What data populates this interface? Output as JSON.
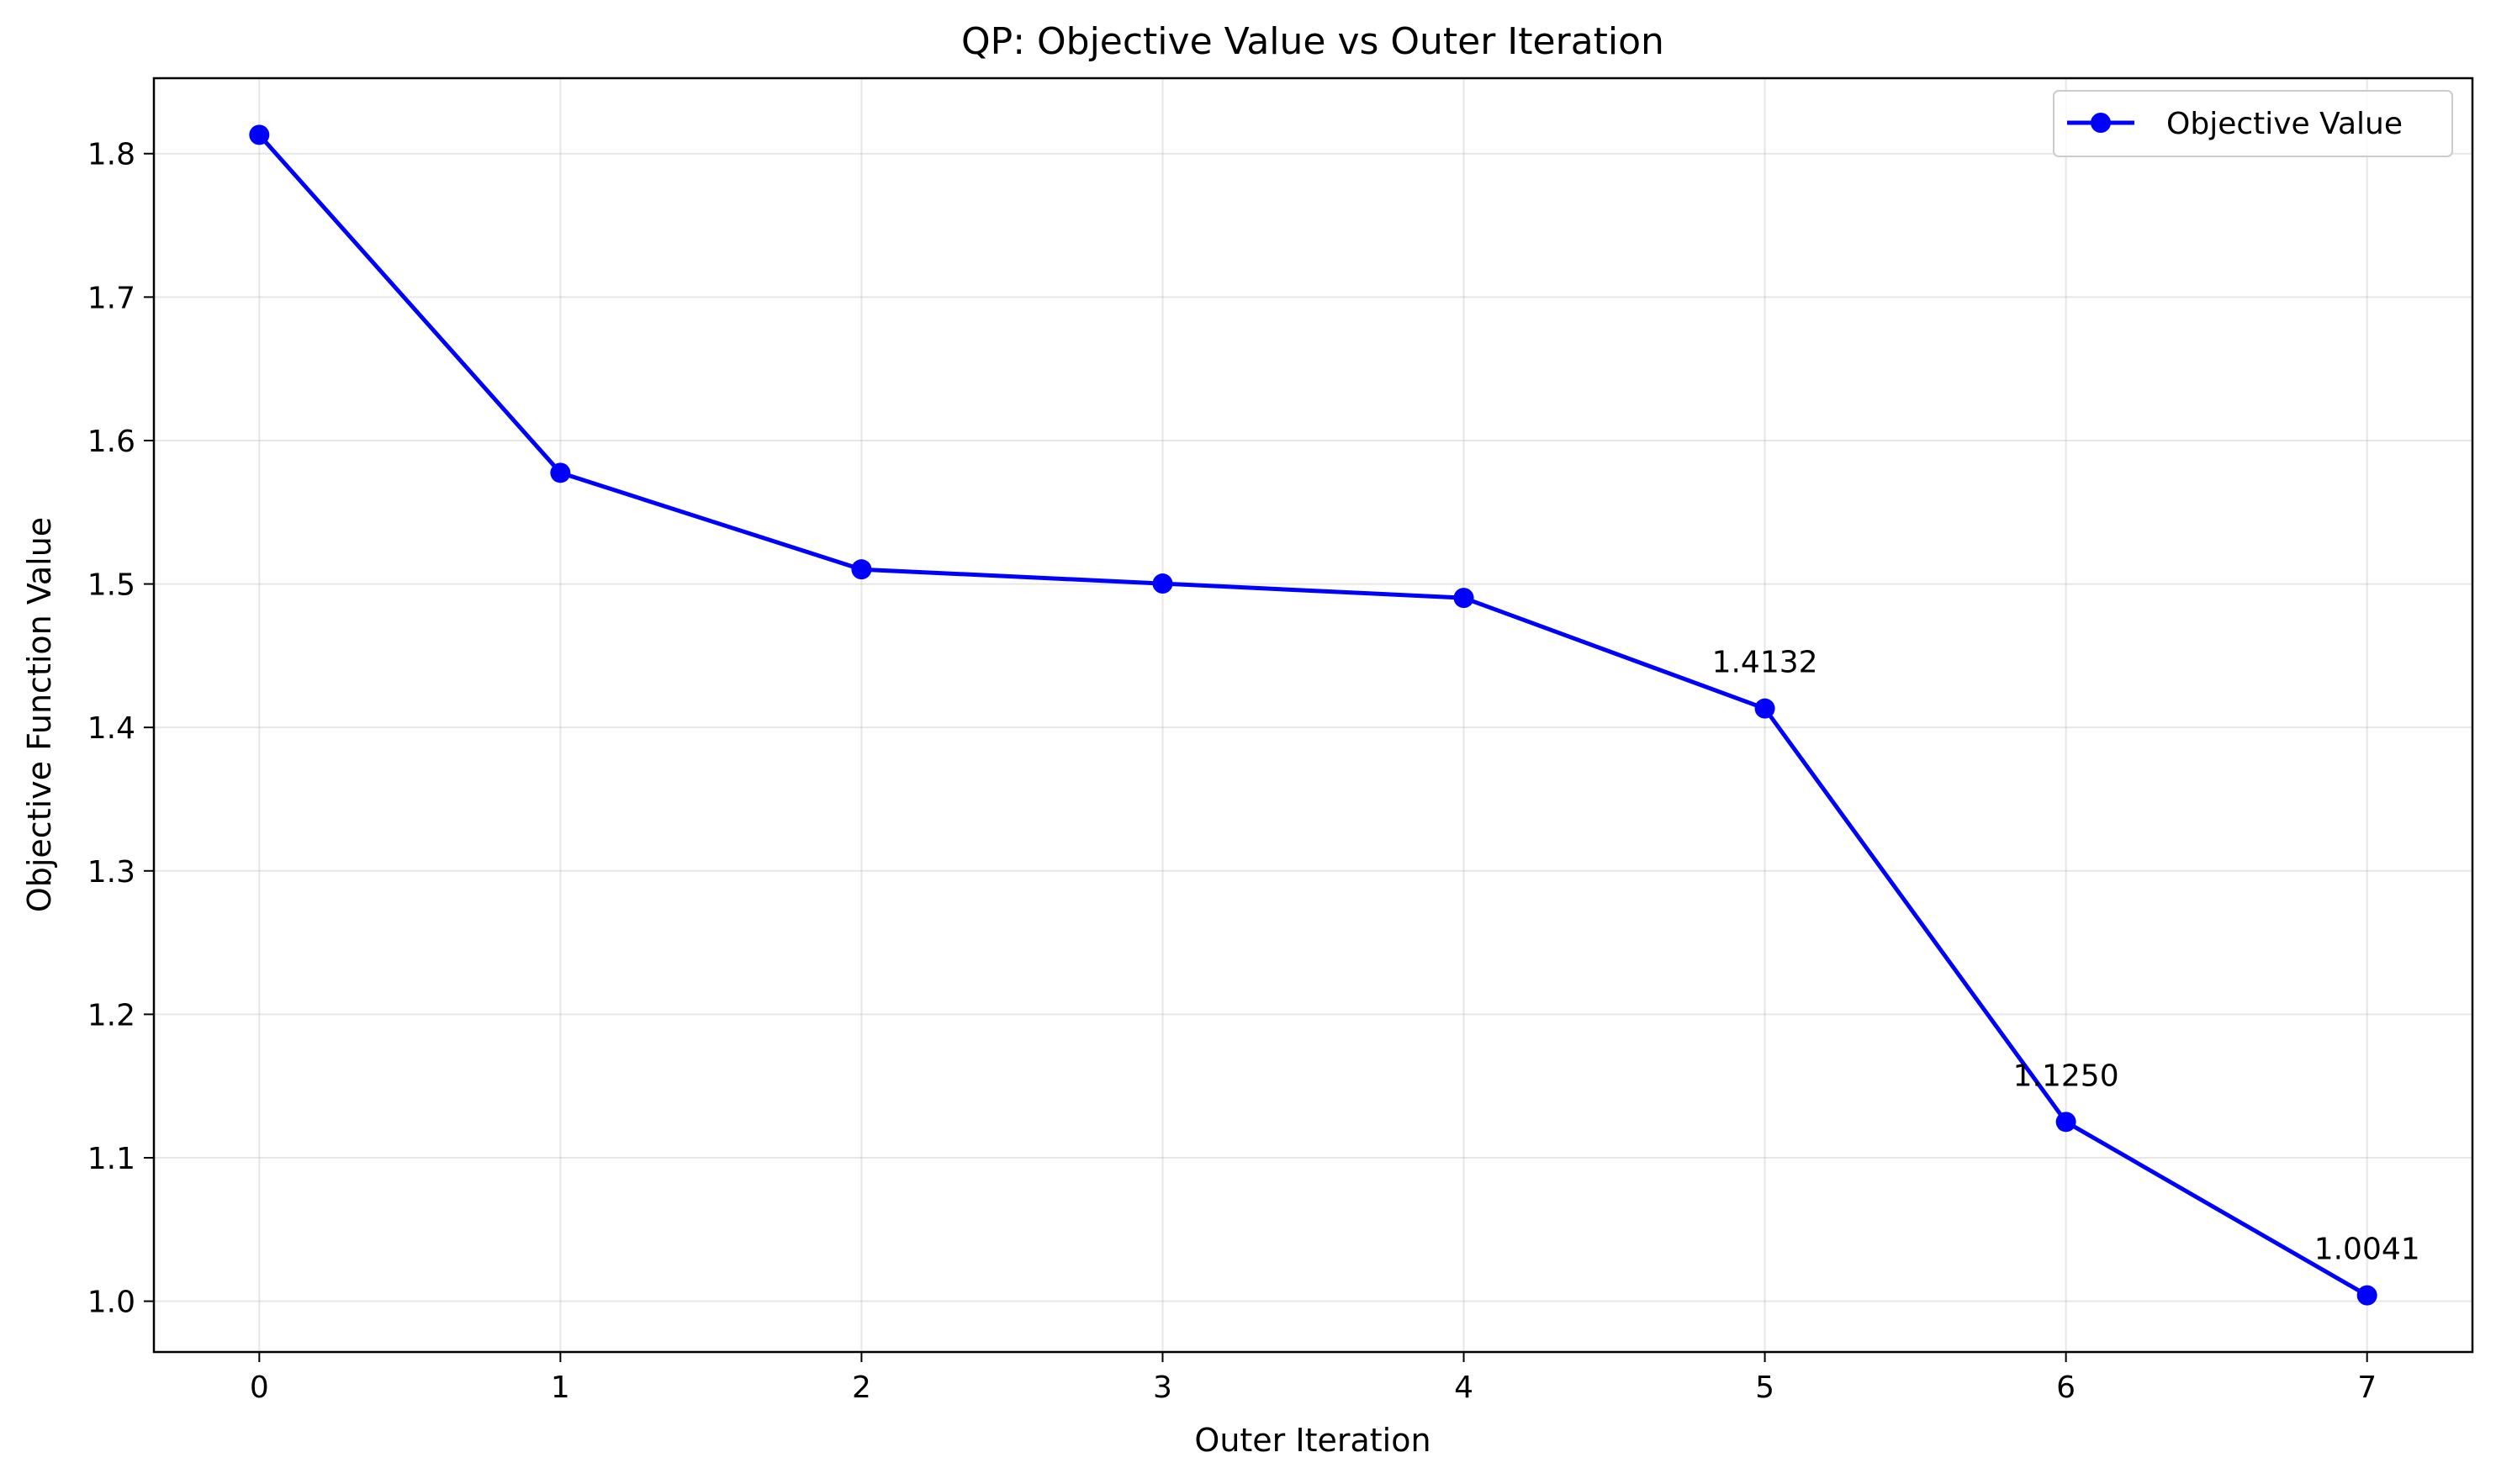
{
  "chart_data": {
    "type": "line",
    "title": "QP: Objective Value vs Outer Iteration",
    "xlabel": "Outer Iteration",
    "ylabel": "Objective Function Value",
    "x": [
      0,
      1,
      2,
      3,
      4,
      5,
      6,
      7
    ],
    "series": [
      {
        "name": "Objective Value",
        "color": "#0000ff",
        "marker": "circle",
        "values": [
          1.8131,
          1.5775,
          1.5102,
          1.5003,
          1.4903,
          1.4132,
          1.125,
          1.0041
        ]
      }
    ],
    "annotations": [
      {
        "x": 5,
        "y": 1.4132,
        "text": "1.4132"
      },
      {
        "x": 6,
        "y": 1.125,
        "text": "1.1250"
      },
      {
        "x": 7,
        "y": 1.0041,
        "text": "1.0041"
      }
    ],
    "xlim": [
      -0.35,
      7.35
    ],
    "ylim": [
      0.9646,
      1.8526
    ],
    "xticks": [
      0,
      1,
      2,
      3,
      4,
      5,
      6,
      7
    ],
    "xtick_labels": [
      "0",
      "1",
      "2",
      "3",
      "4",
      "5",
      "6",
      "7"
    ],
    "yticks": [
      1.0,
      1.1,
      1.2,
      1.3,
      1.4,
      1.5,
      1.6,
      1.7,
      1.8
    ],
    "ytick_labels": [
      "1.0",
      "1.1",
      "1.2",
      "1.3",
      "1.4",
      "1.5",
      "1.6",
      "1.7",
      "1.8"
    ],
    "grid": true,
    "legend_position": "top-right"
  }
}
